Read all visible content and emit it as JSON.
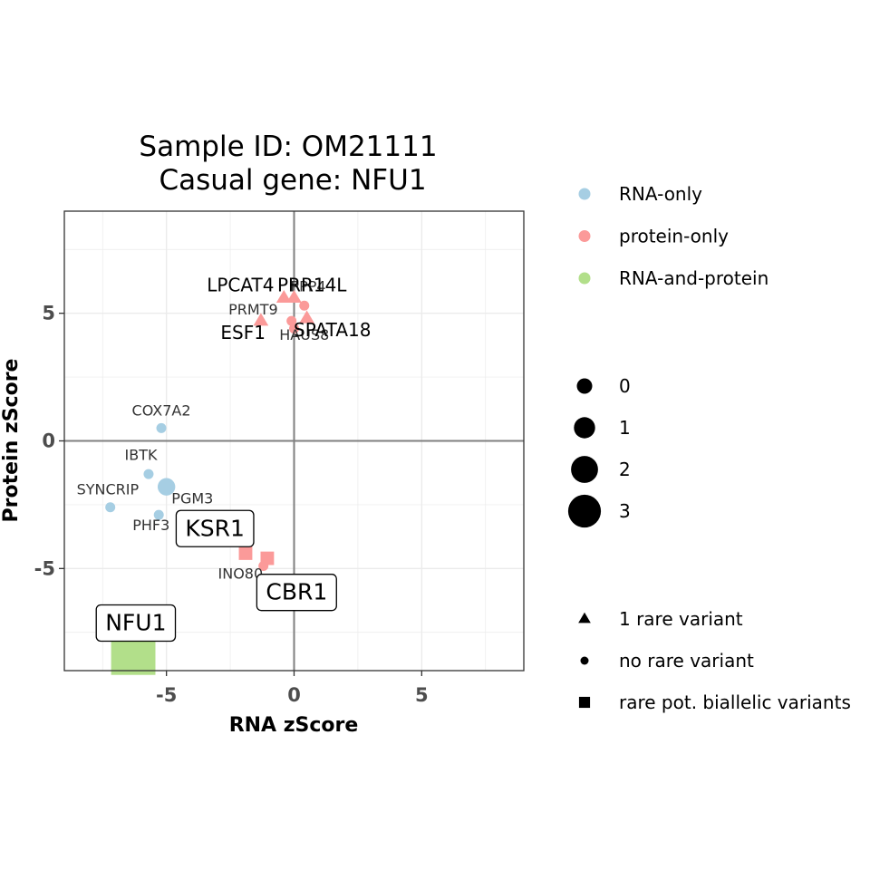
{
  "chart_data": {
    "type": "scatter",
    "title_line1": "Sample ID: OM21111",
    "title_line2": "Casual gene: NFU1",
    "xlabel": "RNA zScore",
    "ylabel": "Protein zScore",
    "xlim": [
      -9,
      9
    ],
    "ylim": [
      -9,
      9
    ],
    "xticks": [
      -5,
      0,
      5
    ],
    "yticks": [
      -5,
      0,
      5
    ],
    "xtick_labels": [
      "-5",
      "0",
      "5"
    ],
    "ytick_labels": [
      "-5",
      "0",
      "5"
    ],
    "grid": true,
    "legend_position": "right",
    "colors": {
      "RNA-only": "#a6cee3",
      "protein-only": "#fb9a99",
      "RNA-and-protein": "#b2df8a"
    },
    "color_legend": [
      "RNA-only",
      "protein-only",
      "RNA-and-protein"
    ],
    "size_legend": [
      "0",
      "1",
      "2",
      "3"
    ],
    "shape_legend": [
      {
        "shape": "triangle",
        "label": "1 rare variant"
      },
      {
        "shape": "circle",
        "label": "no rare variant"
      },
      {
        "shape": "square",
        "label": "rare pot. biallelic variants"
      }
    ],
    "points": [
      {
        "gene": "COX7A2",
        "x": -5.2,
        "y": 0.5,
        "category": "RNA-only",
        "shape": "circle",
        "size": 0
      },
      {
        "gene": "IBTK",
        "x": -5.7,
        "y": -1.3,
        "category": "RNA-only",
        "shape": "circle",
        "size": 0
      },
      {
        "gene": "SYNCRIP",
        "x": -7.2,
        "y": -2.6,
        "category": "RNA-only",
        "shape": "circle",
        "size": 0
      },
      {
        "gene": "PGM3",
        "x": -5.0,
        "y": -1.8,
        "category": "RNA-only",
        "shape": "circle",
        "size": 1
      },
      {
        "gene": "PHF3",
        "x": -5.3,
        "y": -2.9,
        "category": "RNA-only",
        "shape": "circle",
        "size": 0
      },
      {
        "gene": "KSR1",
        "x": -1.9,
        "y": -4.4,
        "category": "protein-only",
        "shape": "square",
        "size": 0
      },
      {
        "gene": "INO80",
        "x": -1.2,
        "y": -4.9,
        "category": "protein-only",
        "shape": "circle",
        "size": 0
      },
      {
        "gene": "CBR1",
        "x": -1.05,
        "y": -4.6,
        "category": "protein-only",
        "shape": "square",
        "size": 0
      },
      {
        "gene": "LPCAT4",
        "x": -0.4,
        "y": 5.6,
        "category": "protein-only",
        "shape": "triangle",
        "size": 0
      },
      {
        "gene": "PPP4",
        "x": 0.0,
        "y": 5.6,
        "category": "protein-only",
        "shape": "triangle",
        "size": 0
      },
      {
        "gene": "PRR14L",
        "x": 0.4,
        "y": 5.3,
        "category": "protein-only",
        "shape": "circle",
        "size": 0
      },
      {
        "gene": "PRMT9",
        "x": -1.3,
        "y": 4.7,
        "category": "protein-only",
        "shape": "triangle",
        "size": 0
      },
      {
        "gene": "ESF1",
        "x": -0.1,
        "y": 4.7,
        "category": "protein-only",
        "shape": "circle",
        "size": 0
      },
      {
        "gene": "HAUS8",
        "x": 0.0,
        "y": 4.4,
        "category": "protein-only",
        "shape": "circle",
        "size": 0
      },
      {
        "gene": "SPATA18",
        "x": 0.5,
        "y": 4.8,
        "category": "protein-only",
        "shape": "triangle",
        "size": 0
      },
      {
        "gene": "NFU1",
        "x": -6.3,
        "y": -8.3,
        "category": "RNA-and-protein",
        "shape": "square",
        "size": 3
      }
    ],
    "annotations": [
      {
        "text": "COX7A2",
        "x": -5.2,
        "y": 1.0,
        "style": "small",
        "anchor": "middle"
      },
      {
        "text": "IBTK",
        "x": -6.0,
        "y": -0.75,
        "style": "small",
        "anchor": "middle"
      },
      {
        "text": "SYNCRIP",
        "x": -7.3,
        "y": -2.1,
        "style": "small",
        "anchor": "middle"
      },
      {
        "text": "PGM3",
        "x": -4.8,
        "y": -2.45,
        "style": "small",
        "anchor": "start"
      },
      {
        "text": "PHF3",
        "x": -5.6,
        "y": -3.5,
        "style": "small",
        "anchor": "middle"
      },
      {
        "text": "INO80",
        "x": -2.1,
        "y": -5.4,
        "style": "small",
        "anchor": "middle"
      },
      {
        "text": "PRMT9",
        "x": -1.6,
        "y": 4.95,
        "style": "small",
        "anchor": "middle"
      },
      {
        "text": "HAUS8",
        "x": 0.4,
        "y": 3.95,
        "style": "small",
        "anchor": "middle"
      },
      {
        "text": "LPCAT4",
        "x": -2.1,
        "y": 5.85,
        "style": "mid",
        "anchor": "middle"
      },
      {
        "text": "PPP4",
        "x": 0.55,
        "y": 5.85,
        "style": "small",
        "anchor": "middle"
      },
      {
        "text": "PRR14L",
        "x": 0.7,
        "y": 5.85,
        "style": "mid",
        "anchor": "middle"
      },
      {
        "text": "ESF1",
        "x": -2.0,
        "y": 4.0,
        "style": "mid",
        "anchor": "middle"
      },
      {
        "text": "SPATA18",
        "x": 1.5,
        "y": 4.1,
        "style": "mid",
        "anchor": "middle"
      }
    ],
    "boxed_labels": [
      {
        "text": "KSR1",
        "x": -3.1,
        "y": -3.4
      },
      {
        "text": "CBR1",
        "x": 0.1,
        "y": -5.9
      },
      {
        "text": "NFU1",
        "x": -6.2,
        "y": -7.1
      }
    ]
  }
}
